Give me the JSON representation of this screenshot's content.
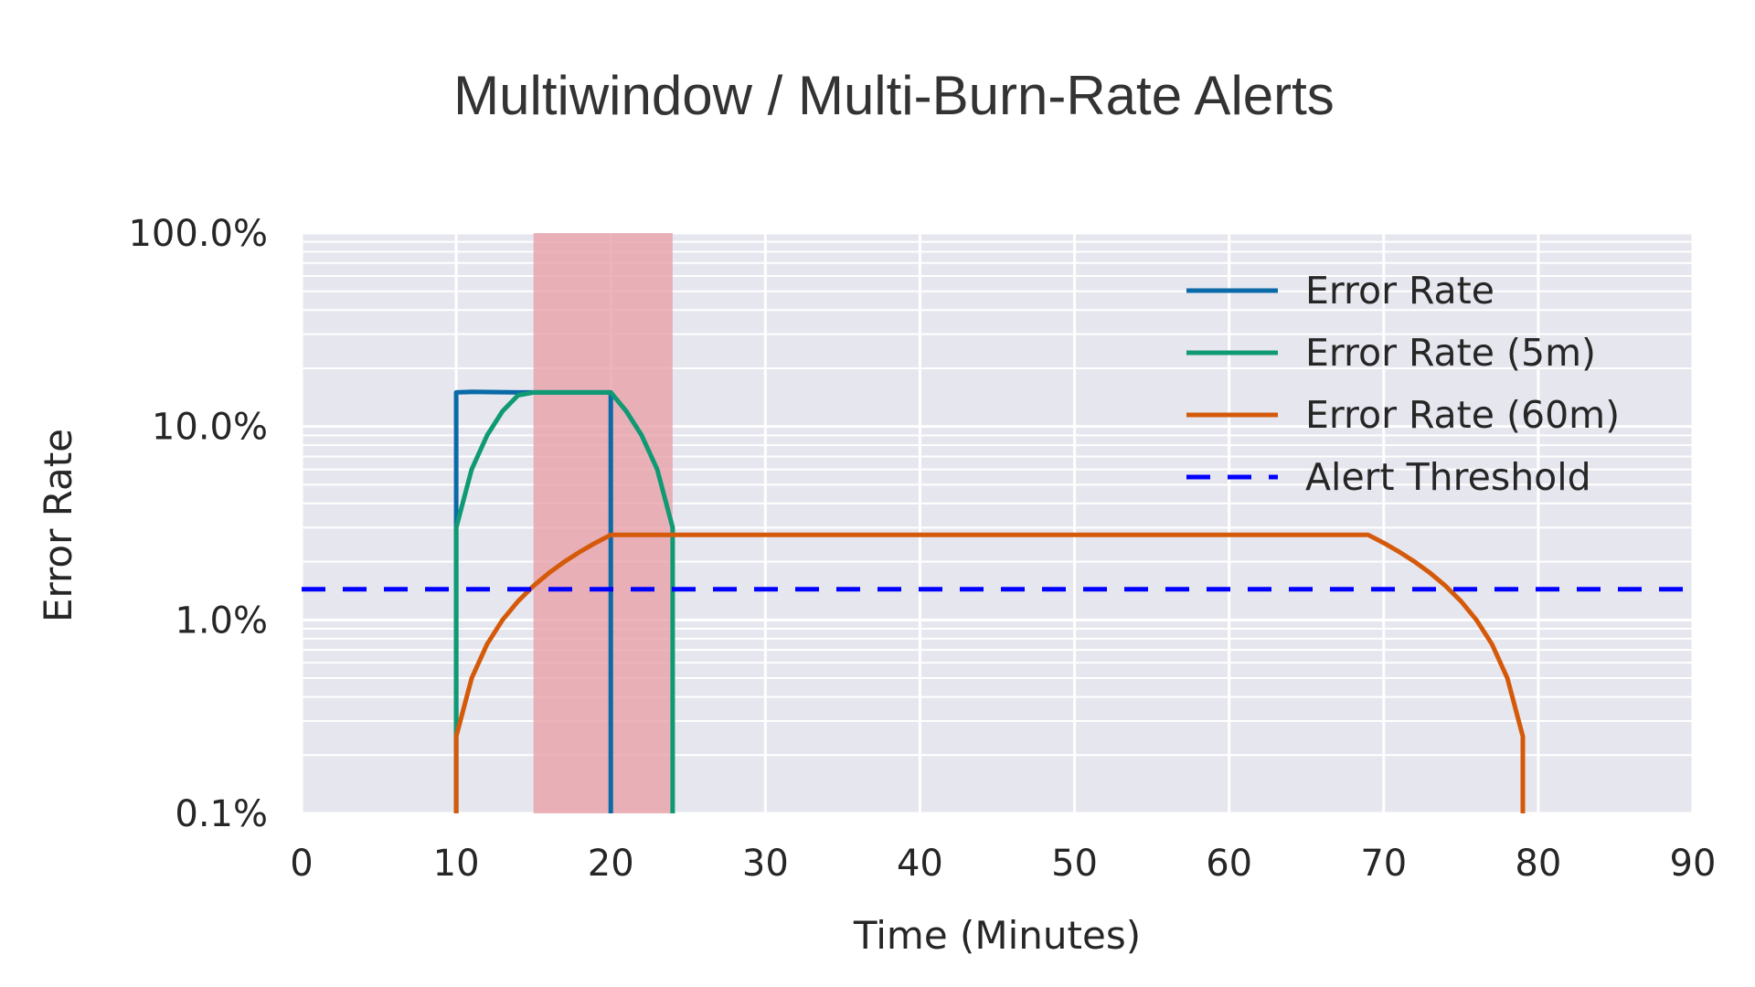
{
  "chart_data": {
    "type": "line",
    "title": "Multiwindow / Multi-Burn-Rate Alerts",
    "xlabel": "Time (Minutes)",
    "ylabel": "Error Rate",
    "xlim": [
      0,
      90
    ],
    "ylim": [
      0.001,
      1.0
    ],
    "yscale": "log",
    "xticks": [
      0,
      10,
      20,
      30,
      40,
      50,
      60,
      70,
      80,
      90
    ],
    "xtick_labels": [
      "0",
      "10",
      "20",
      "30",
      "40",
      "50",
      "60",
      "70",
      "80",
      "90"
    ],
    "yticks": [
      0.001,
      0.01,
      0.1,
      1.0
    ],
    "ytick_labels": [
      "0.1%",
      "1.0%",
      "10.0%",
      "100.0%"
    ],
    "grid": true,
    "legend_position": "top-right",
    "alert_window": {
      "x": [
        15,
        24
      ],
      "color": "#e8a1a9"
    },
    "series": [
      {
        "name": "Error Rate",
        "color": "#0a6aa8",
        "style": "solid",
        "x": [
          10,
          10,
          11,
          14,
          15,
          17,
          20,
          20
        ],
        "y": [
          0.001,
          0.15,
          0.151,
          0.15,
          0.15,
          0.15,
          0.15,
          0.001
        ]
      },
      {
        "name": "Error Rate (5m)",
        "color": "#0f9a73",
        "style": "solid",
        "x": [
          10,
          10,
          10,
          11,
          12,
          13,
          14,
          15,
          17,
          20,
          21,
          22,
          23,
          24,
          24
        ],
        "y": [
          0.001,
          0.0025,
          0.03,
          0.06,
          0.09,
          0.12,
          0.145,
          0.15,
          0.15,
          0.15,
          0.12,
          0.09,
          0.06,
          0.03,
          0.001
        ]
      },
      {
        "name": "Error Rate (60m)",
        "color": "#d45a0a",
        "style": "solid",
        "x": [
          10,
          10,
          11,
          12,
          13,
          14,
          15,
          16,
          17,
          18,
          19,
          20,
          69,
          70,
          71,
          72,
          73,
          74,
          75,
          76,
          77,
          78,
          79,
          79
        ],
        "y": [
          0.001,
          0.0025,
          0.005,
          0.0075,
          0.01,
          0.0125,
          0.015,
          0.0175,
          0.02,
          0.0225,
          0.025,
          0.0275,
          0.0275,
          0.025,
          0.0225,
          0.02,
          0.0175,
          0.015,
          0.0125,
          0.01,
          0.0075,
          0.005,
          0.0025,
          0.001
        ]
      },
      {
        "name": "Alert Threshold",
        "color": "#0000ff",
        "style": "dashed",
        "x": [
          0,
          90
        ],
        "y": [
          0.0144,
          0.0144
        ]
      }
    ]
  }
}
